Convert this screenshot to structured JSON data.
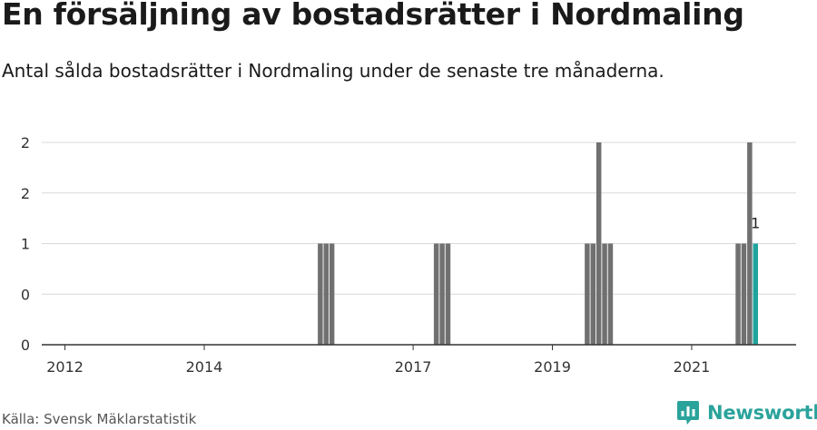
{
  "header": {
    "title": "En försäljning av bostadsrätter i Nordmaling",
    "subtitle": "Antal sålda bostadsrätter i Nordmaling under de senaste tre månaderna."
  },
  "footer": {
    "source": "Källa: Svensk Mäklarstatistik",
    "brand": "Newsworthy"
  },
  "colors": {
    "bar": "#707070",
    "highlight": "#1fa39c",
    "brand": "#2aa39b",
    "grid": "#d9d9d9"
  },
  "icons": {
    "brand_logo": "newsworthy-logo-icon"
  },
  "chart_data": {
    "type": "bar",
    "title": "",
    "xlabel": "",
    "ylabel": "",
    "ylim": [
      0,
      2
    ],
    "y_ticks": [
      0,
      0.5,
      1,
      1.5,
      2
    ],
    "y_tick_labels": [
      "0",
      "0",
      "1",
      "2",
      "2"
    ],
    "x_ticks": [
      2012,
      2014,
      2017,
      2019,
      2021
    ],
    "x_range": [
      "2011-09",
      "2022-07"
    ],
    "grid": true,
    "legend": "none",
    "series": [
      {
        "points": [
          {
            "x": "2015-09",
            "y": 1
          },
          {
            "x": "2015-10",
            "y": 1
          },
          {
            "x": "2015-11",
            "y": 1
          },
          {
            "x": "2017-05",
            "y": 1
          },
          {
            "x": "2017-06",
            "y": 1
          },
          {
            "x": "2017-07",
            "y": 1
          },
          {
            "x": "2019-07",
            "y": 1
          },
          {
            "x": "2019-08",
            "y": 1
          },
          {
            "x": "2019-09",
            "y": 2
          },
          {
            "x": "2019-10",
            "y": 1
          },
          {
            "x": "2019-11",
            "y": 1
          },
          {
            "x": "2021-09",
            "y": 1
          },
          {
            "x": "2021-10",
            "y": 1
          },
          {
            "x": "2021-11",
            "y": 2
          },
          {
            "x": "2021-12",
            "y": 1,
            "highlight": true,
            "label": "1"
          }
        ]
      }
    ]
  }
}
